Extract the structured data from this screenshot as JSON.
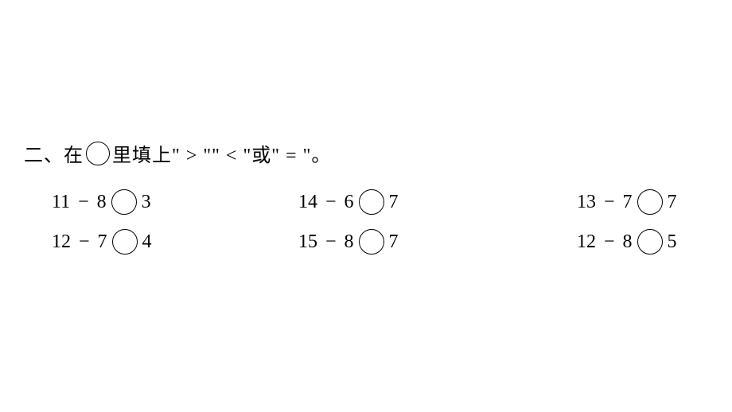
{
  "instruction": {
    "prefix": "二、在",
    "suffix": "里填上\" > \"\" < \"或\" = \"。"
  },
  "problems": {
    "rows": [
      [
        {
          "left": "11",
          "op": "−",
          "right": "8",
          "compare_to": "3"
        },
        {
          "left": "14",
          "op": "−",
          "right": "6",
          "compare_to": "7"
        },
        {
          "left": "13",
          "op": "−",
          "right": "7",
          "compare_to": "7"
        }
      ],
      [
        {
          "left": "12",
          "op": "−",
          "right": "7",
          "compare_to": "4"
        },
        {
          "left": "15",
          "op": "−",
          "right": "8",
          "compare_to": "7"
        },
        {
          "left": "12",
          "op": "−",
          "right": "8",
          "compare_to": "5"
        }
      ]
    ]
  },
  "styling": {
    "background_color": "#ffffff",
    "text_color": "#000000",
    "circle_border_color": "#000000",
    "font_size_instruction": 24,
    "font_size_problem": 24,
    "circle_diameter": 32
  }
}
